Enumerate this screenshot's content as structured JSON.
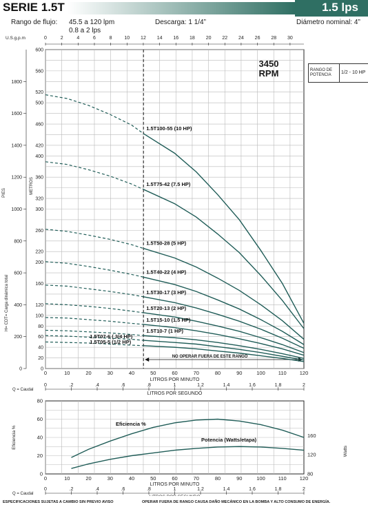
{
  "header": {
    "title": "SERIE 1.5T",
    "flow": "1.5 lps",
    "rango_label": "Rango de flujo:",
    "rango_lpm": "45.5 a 120 lpm",
    "rango_lps": "0.8 a 2 lps",
    "descarga": "Descarga: 1 1/4”",
    "diametro": "Diámetro nominal: 4”",
    "rpm_value": "3450",
    "rpm_unit": "RPM",
    "potencia_label": "RANGO DE POTENCIA",
    "potencia_value": "1/2 - 10 HP"
  },
  "footer": {
    "left": "ESPECIFICACIONES SUJETAS A CAMBIO SIN PREVIO AVISO",
    "right": "OPERAR FUERA DE RANGO CAUSA DAÑO MECÁNICO EN LA BOMBA Y ALTO CONSUMO DE ENERGÍA."
  },
  "chart_data": [
    {
      "type": "line",
      "title": "",
      "xlabel": "LITROS POR MINUTO",
      "x_secondary_bottom_label": "LITROS POR SEGUNDO",
      "x_secondary_bottom_prefix": "Q = Caudal",
      "x_secondary_top_label": "U.S.g.p.m",
      "ylabel_feet": "PIES",
      "ylabel_metres": "METROS",
      "ylabel_main": "H= CDT= Carga dinámica total",
      "xlim": [
        0,
        120
      ],
      "ylim_metres": [
        0,
        600
      ],
      "ylim_feet": [
        0,
        2000
      ],
      "x_ticks": [
        0,
        10,
        20,
        30,
        40,
        50,
        60,
        70,
        80,
        90,
        100,
        110,
        120
      ],
      "x_ticks_gpm": [
        0,
        2,
        4,
        6,
        8,
        10,
        12,
        14,
        16,
        18,
        20,
        22,
        24,
        26,
        28,
        30
      ],
      "x_ticks_lps": [
        "0",
        ".2",
        ".4",
        ".6",
        ".8",
        "1",
        "1.2",
        "1.4",
        "1.6",
        "1.8",
        "2"
      ],
      "y_ticks_metres_lower": [
        0,
        20,
        40,
        60,
        80,
        100
      ],
      "y_ticks_metres_upper": [
        120,
        160,
        200,
        220,
        260,
        300,
        320,
        360,
        400,
        420,
        460,
        500,
        520,
        560,
        600
      ],
      "y_ticks_feet": [
        0,
        200,
        400,
        600,
        800,
        1000,
        1200,
        1400,
        1600,
        1800
      ],
      "operating_limit_x": 45.5,
      "annotation": "NO OPERAR FUERA DE ESTE RANGO",
      "grid": true,
      "series": [
        {
          "name": "1.5T100-55 (10 HP)",
          "x": [
            0,
            10,
            20,
            30,
            40,
            45.5,
            60,
            70,
            80,
            90,
            100,
            110,
            120
          ],
          "values": [
            515,
            508,
            495,
            478,
            458,
            442,
            405,
            370,
            327,
            280,
            222,
            160,
            85
          ]
        },
        {
          "name": "1.5T75-42 (7.5 HP)",
          "x": [
            0,
            10,
            20,
            30,
            40,
            45.5,
            60,
            70,
            80,
            90,
            100,
            110,
            120
          ],
          "values": [
            389,
            384,
            374,
            362,
            347,
            337,
            310,
            285,
            253,
            218,
            175,
            128,
            75
          ]
        },
        {
          "name": "1.5T50-28 (5 HP)",
          "x": [
            0,
            10,
            20,
            30,
            40,
            45.5,
            60,
            70,
            80,
            90,
            100,
            110,
            120
          ],
          "values": [
            262,
            258,
            251,
            243,
            233,
            226,
            208,
            191,
            170,
            147,
            120,
            90,
            55
          ]
        },
        {
          "name": "1.5T40-22 (4 HP)",
          "x": [
            0,
            10,
            20,
            30,
            40,
            45.5,
            60,
            70,
            80,
            90,
            100,
            110,
            120
          ],
          "values": [
            201,
            198,
            192,
            185,
            177,
            172,
            158,
            145,
            129,
            112,
            92,
            70,
            45
          ]
        },
        {
          "name": "1.5T30-17 (3 HP)",
          "x": [
            0,
            10,
            20,
            30,
            40,
            45.5,
            60,
            70,
            80,
            90,
            100,
            110,
            120
          ],
          "values": [
            157,
            155,
            150,
            145,
            139,
            135,
            124,
            114,
            102,
            89,
            74,
            57,
            38
          ]
        },
        {
          "name": "1.5T20-13 (2 HP)",
          "x": [
            0,
            10,
            20,
            30,
            40,
            45.5,
            60,
            70,
            80,
            90,
            100,
            110,
            120
          ],
          "values": [
            122,
            120,
            117,
            113,
            108,
            105,
            97,
            89,
            80,
            70,
            58,
            45,
            30
          ]
        },
        {
          "name": "1.5T15-10 (1.5 HP)",
          "x": [
            0,
            10,
            20,
            30,
            40,
            45.5,
            60,
            70,
            80,
            90,
            100,
            110,
            120
          ],
          "values": [
            96,
            95,
            92,
            89,
            85,
            83,
            77,
            71,
            64,
            56,
            47,
            37,
            25
          ]
        },
        {
          "name": "1.5T10-7 (1 HP)",
          "x": [
            0,
            10,
            20,
            30,
            40,
            45.5,
            60,
            70,
            80,
            90,
            100,
            110,
            120
          ],
          "values": [
            72,
            71,
            69,
            67,
            64,
            62,
            58,
            54,
            49,
            43,
            36,
            28,
            19
          ]
        },
        {
          "name": "1.5T07-6 ( 3/4 HP)",
          "x": [
            0,
            10,
            20,
            30,
            40,
            45.5,
            60,
            70,
            80,
            90,
            100,
            110,
            120
          ],
          "values": [
            62,
            61,
            59,
            57,
            55,
            53,
            49,
            46,
            41,
            36,
            30,
            23,
            16
          ]
        },
        {
          "name": "1.5T05-5 (1/2 HP)",
          "x": [
            0,
            10,
            20,
            30,
            40,
            45.5,
            60,
            70,
            80,
            90,
            100,
            110,
            120
          ],
          "values": [
            50,
            49,
            48,
            46,
            44,
            43,
            40,
            37,
            33,
            29,
            24,
            19,
            13
          ]
        }
      ]
    },
    {
      "type": "line",
      "title": "",
      "xlabel": "LITROS POR MINUTO",
      "x_secondary_bottom_label": "LITROS POR SEGUNDO",
      "x_secondary_bottom_prefix": "Q = Caudal",
      "ylabel_left": "Eficiencia %",
      "ylabel_right": "Watts",
      "xlim": [
        0,
        120
      ],
      "ylim_left": [
        0,
        80
      ],
      "right_ticks": [
        80,
        120,
        160
      ],
      "x_ticks": [
        0,
        10,
        20,
        30,
        40,
        50,
        60,
        70,
        80,
        90,
        100,
        110,
        120
      ],
      "x_ticks_lps": [
        "0",
        ".2",
        ".4",
        ".6",
        ".8",
        "1",
        "1.2",
        "1.4",
        "1.6",
        "1.8",
        "2"
      ],
      "y_ticks_left": [
        0,
        20,
        40,
        60,
        80
      ],
      "grid": true,
      "series": [
        {
          "name": "Eficiencia %",
          "x": [
            12,
            20,
            30,
            40,
            50,
            60,
            70,
            80,
            90,
            100,
            110,
            120
          ],
          "values": [
            18,
            27,
            36,
            44,
            51,
            56,
            59,
            60,
            58,
            54,
            48,
            40
          ]
        },
        {
          "name": "Potencia (Watts/etapa)",
          "x": [
            12,
            20,
            30,
            40,
            50,
            60,
            70,
            80,
            90,
            100,
            110,
            120
          ],
          "values": [
            6,
            11,
            16,
            20,
            23,
            26,
            28,
            29.5,
            30,
            29.5,
            28,
            26
          ]
        }
      ]
    }
  ]
}
